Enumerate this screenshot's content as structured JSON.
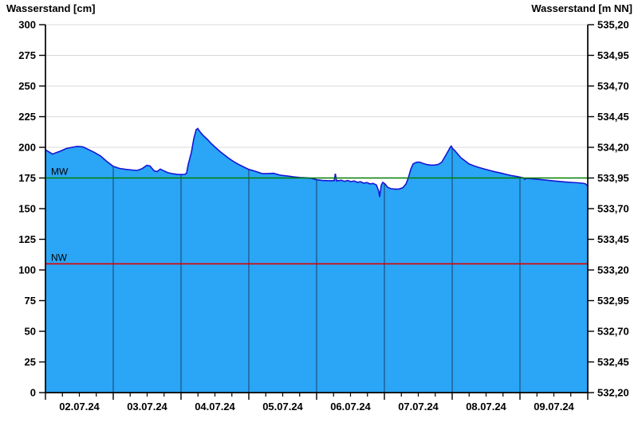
{
  "chart_data": {
    "type": "area",
    "title_left": "Wasserstand [cm]",
    "title_right": "Wasserstand [m NN]",
    "x_axis": {
      "labels": [
        "02.07.24",
        "03.07.24",
        "04.07.24",
        "05.07.24",
        "06.07.24",
        "07.07.24",
        "08.07.24",
        "09.07.24"
      ],
      "days": 8,
      "minor_ticks_per_day": 4,
      "range_note": "x in days from 02.07.24 00:00 to 10.07.24 00:00"
    },
    "y_left": {
      "label": "Wasserstand [cm]",
      "min": 0,
      "max": 300,
      "ticks": [
        300,
        275,
        250,
        225,
        200,
        175,
        150,
        125,
        100,
        75,
        50,
        25,
        0
      ]
    },
    "y_right": {
      "label": "Wasserstand [m NN]",
      "ticks": [
        "535,20",
        "534,95",
        "534,70",
        "534,45",
        "534,20",
        "533,95",
        "533,70",
        "533,45",
        "533,20",
        "532,95",
        "532,70",
        "532,45",
        "532,20"
      ]
    },
    "reference_lines": [
      {
        "name": "MW",
        "value_cm": 175,
        "color": "#007f00"
      },
      {
        "name": "NW",
        "value_cm": 105,
        "color": "#dd0000"
      }
    ],
    "series": {
      "name": "Wasserstand",
      "unit": "cm",
      "points": [
        [
          0,
          198
        ],
        [
          0.06,
          196
        ],
        [
          0.106,
          194.5
        ],
        [
          0.153,
          195.5
        ],
        [
          0.224,
          197
        ],
        [
          0.306,
          199
        ],
        [
          0.388,
          200
        ],
        [
          0.47,
          200.8
        ],
        [
          0.553,
          200.4
        ],
        [
          0.624,
          198.5
        ],
        [
          0.718,
          196
        ],
        [
          0.812,
          193
        ],
        [
          0.906,
          188.5
        ],
        [
          1.0,
          184.5
        ],
        [
          1.094,
          182.8
        ],
        [
          1.188,
          182
        ],
        [
          1.282,
          181.5
        ],
        [
          1.353,
          181.2
        ],
        [
          1.424,
          182.5
        ],
        [
          1.494,
          185.3
        ],
        [
          1.541,
          184.8
        ],
        [
          1.6,
          181
        ],
        [
          1.647,
          180.2
        ],
        [
          1.694,
          182.3
        ],
        [
          1.741,
          181
        ],
        [
          1.8,
          179.5
        ],
        [
          1.871,
          178.5
        ],
        [
          1.941,
          178
        ],
        [
          2.012,
          177.8
        ],
        [
          2.059,
          178
        ],
        [
          2.082,
          179
        ],
        [
          2.106,
          186
        ],
        [
          2.153,
          196
        ],
        [
          2.188,
          207
        ],
        [
          2.224,
          214.5
        ],
        [
          2.247,
          215.3
        ],
        [
          2.282,
          212.5
        ],
        [
          2.329,
          209.5
        ],
        [
          2.388,
          206.5
        ],
        [
          2.447,
          203
        ],
        [
          2.506,
          200
        ],
        [
          2.576,
          196.5
        ],
        [
          2.647,
          193.5
        ],
        [
          2.718,
          190.5
        ],
        [
          2.788,
          188
        ],
        [
          2.859,
          185.8
        ],
        [
          2.929,
          183.8
        ],
        [
          3.0,
          182
        ],
        [
          3.094,
          180.5
        ],
        [
          3.188,
          178.7
        ],
        [
          3.259,
          178.5
        ],
        [
          3.365,
          178.8
        ],
        [
          3.471,
          177.2
        ],
        [
          3.565,
          176.7
        ],
        [
          3.659,
          176
        ],
        [
          3.753,
          175.4
        ],
        [
          3.847,
          175.1
        ],
        [
          3.918,
          174.8
        ],
        [
          4.0,
          173.6
        ],
        [
          4.082,
          173
        ],
        [
          4.176,
          172.8
        ],
        [
          4.259,
          172.8
        ],
        [
          4.276,
          178.5
        ],
        [
          4.294,
          172.6
        ],
        [
          4.365,
          173.2
        ],
        [
          4.412,
          172.3
        ],
        [
          4.459,
          173
        ],
        [
          4.506,
          172
        ],
        [
          4.553,
          172.6
        ],
        [
          4.6,
          171.4
        ],
        [
          4.647,
          172
        ],
        [
          4.694,
          170.8
        ],
        [
          4.741,
          171.3
        ],
        [
          4.788,
          170.2
        ],
        [
          4.835,
          170.6
        ],
        [
          4.882,
          169.3
        ],
        [
          4.918,
          164
        ],
        [
          4.929,
          159.5
        ],
        [
          4.953,
          169
        ],
        [
          4.976,
          171.5
        ],
        [
          5.012,
          170
        ],
        [
          5.047,
          167.5
        ],
        [
          5.094,
          166.3
        ],
        [
          5.153,
          166
        ],
        [
          5.212,
          166
        ],
        [
          5.271,
          167
        ],
        [
          5.318,
          170
        ],
        [
          5.353,
          175
        ],
        [
          5.388,
          182
        ],
        [
          5.424,
          186.5
        ],
        [
          5.471,
          187.8
        ],
        [
          5.518,
          188
        ],
        [
          5.565,
          187
        ],
        [
          5.624,
          186
        ],
        [
          5.682,
          185.5
        ],
        [
          5.741,
          185.5
        ],
        [
          5.8,
          186.2
        ],
        [
          5.847,
          188
        ],
        [
          5.894,
          192.5
        ],
        [
          5.941,
          197
        ],
        [
          5.976,
          200.5
        ],
        [
          5.988,
          201
        ],
        [
          6.0,
          199.5
        ],
        [
          6.035,
          197.5
        ],
        [
          6.082,
          194.5
        ],
        [
          6.129,
          191.5
        ],
        [
          6.188,
          189
        ],
        [
          6.247,
          186.5
        ],
        [
          6.318,
          185
        ],
        [
          6.388,
          183.7
        ],
        [
          6.471,
          182.4
        ],
        [
          6.553,
          181.2
        ],
        [
          6.635,
          180
        ],
        [
          6.718,
          179
        ],
        [
          6.8,
          177.9
        ],
        [
          6.882,
          176.9
        ],
        [
          6.965,
          176.1
        ],
        [
          7.0,
          175.7
        ],
        [
          7.059,
          174.9
        ],
        [
          7.071,
          173.9
        ],
        [
          7.094,
          174.7
        ],
        [
          7.188,
          174.3
        ],
        [
          7.282,
          173.8
        ],
        [
          7.376,
          173.3
        ],
        [
          7.471,
          172.8
        ],
        [
          7.565,
          172.3
        ],
        [
          7.659,
          171.8
        ],
        [
          7.753,
          171.4
        ],
        [
          7.847,
          171.1
        ],
        [
          7.918,
          170.8
        ],
        [
          7.965,
          170.3
        ],
        [
          7.988,
          169
        ],
        [
          8.0,
          168.6
        ]
      ]
    },
    "colors": {
      "fill": "#2ba5f5",
      "stroke": "#1515d6",
      "day_grid": "#1d6397",
      "h_grid": "#d9d9d9",
      "axis": "#000000",
      "mw": "#007f00",
      "nw": "#dd0000"
    }
  }
}
